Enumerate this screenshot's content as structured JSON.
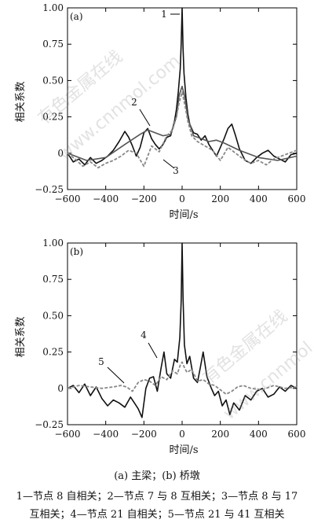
{
  "chart_data": [
    {
      "type": "line",
      "panel_label": "(a)",
      "xlabel": "时间/s",
      "ylabel": "相关系数",
      "xlim": [
        -600,
        600
      ],
      "ylim": [
        -0.25,
        1.0
      ],
      "xticks": [
        "−600",
        "−400",
        "−200",
        "0",
        "200",
        "400",
        "600"
      ],
      "yticks": [
        "−0.25",
        "0",
        "0.25",
        "0.50",
        "0.75",
        "1.00"
      ],
      "series": [
        {
          "name": "1",
          "style": "solid",
          "color": "#111111",
          "x": [
            -600,
            -570,
            -540,
            -510,
            -480,
            -450,
            -420,
            -390,
            -360,
            -330,
            -300,
            -280,
            -260,
            -240,
            -220,
            -200,
            -180,
            -160,
            -140,
            -120,
            -100,
            -80,
            -60,
            -40,
            -30,
            -20,
            -10,
            -5,
            0,
            5,
            10,
            20,
            30,
            40,
            60,
            80,
            100,
            120,
            140,
            160,
            180,
            200,
            220,
            240,
            260,
            280,
            300,
            330,
            360,
            390,
            420,
            450,
            480,
            510,
            540,
            570,
            600
          ],
          "y": [
            0.0,
            -0.06,
            -0.04,
            -0.08,
            -0.03,
            -0.07,
            -0.05,
            -0.02,
            0.02,
            0.08,
            0.15,
            0.11,
            0.05,
            -0.02,
            0.04,
            0.14,
            0.17,
            0.1,
            0.06,
            0.03,
            0.06,
            0.11,
            0.12,
            0.22,
            0.3,
            0.42,
            0.58,
            0.75,
            1.0,
            0.72,
            0.55,
            0.38,
            0.27,
            0.2,
            0.14,
            0.13,
            0.09,
            0.12,
            0.06,
            0.02,
            -0.02,
            0.04,
            0.1,
            0.17,
            0.2,
            0.12,
            0.03,
            -0.05,
            -0.07,
            -0.03,
            0.0,
            0.02,
            -0.02,
            -0.04,
            -0.06,
            -0.01,
            0.0
          ]
        },
        {
          "name": "2",
          "style": "solid",
          "color": "#555555",
          "x": [
            -600,
            -500,
            -400,
            -300,
            -220,
            -180,
            -140,
            -100,
            -60,
            -30,
            -15,
            0,
            15,
            30,
            60,
            100,
            140,
            180,
            220,
            300,
            400,
            500,
            600
          ],
          "y": [
            0.0,
            -0.05,
            -0.03,
            0.06,
            0.13,
            0.16,
            0.14,
            0.12,
            0.13,
            0.25,
            0.4,
            0.46,
            0.38,
            0.24,
            0.12,
            0.1,
            0.08,
            0.09,
            0.07,
            0.02,
            -0.03,
            -0.05,
            -0.02
          ]
        },
        {
          "name": "3",
          "style": "dashed",
          "color": "#888888",
          "x": [
            -600,
            -560,
            -520,
            -480,
            -440,
            -400,
            -360,
            -320,
            -280,
            -240,
            -200,
            -160,
            -120,
            -80,
            -50,
            -30,
            -15,
            0,
            15,
            30,
            50,
            80,
            120,
            160,
            200,
            240,
            280,
            320,
            360,
            400,
            440,
            480,
            520,
            560,
            600
          ],
          "y": [
            0.0,
            -0.04,
            -0.09,
            -0.06,
            -0.1,
            -0.07,
            -0.05,
            -0.02,
            0.02,
            0.0,
            -0.09,
            0.05,
            0.01,
            0.12,
            0.16,
            0.25,
            0.35,
            0.42,
            0.33,
            0.22,
            0.12,
            0.08,
            0.05,
            0.02,
            -0.05,
            0.04,
            0.0,
            -0.04,
            -0.07,
            -0.05,
            -0.08,
            -0.04,
            -0.02,
            0.0,
            0.02
          ]
        }
      ],
      "annotations": [
        "1",
        "2",
        "3"
      ]
    },
    {
      "type": "line",
      "panel_label": "(b)",
      "xlabel": "时间/s",
      "ylabel": "相关系数",
      "xlim": [
        -600,
        600
      ],
      "ylim": [
        -0.25,
        1.0
      ],
      "xticks": [
        "−600",
        "−400",
        "−200",
        "0",
        "200",
        "400",
        "600"
      ],
      "yticks": [
        "−0.25",
        "0",
        "0.25",
        "0.50",
        "0.75",
        "1.00"
      ],
      "series": [
        {
          "name": "4",
          "style": "solid",
          "color": "#111111",
          "x": [
            -600,
            -570,
            -540,
            -510,
            -480,
            -450,
            -420,
            -390,
            -360,
            -330,
            -300,
            -270,
            -250,
            -230,
            -210,
            -190,
            -170,
            -150,
            -130,
            -110,
            -95,
            -80,
            -60,
            -40,
            -25,
            -12,
            -5,
            0,
            5,
            12,
            25,
            40,
            60,
            80,
            95,
            110,
            130,
            150,
            170,
            190,
            210,
            230,
            250,
            270,
            300,
            330,
            360,
            390,
            420,
            450,
            480,
            510,
            540,
            570,
            600
          ],
          "y": [
            0.0,
            0.02,
            -0.03,
            0.03,
            -0.05,
            0.01,
            -0.07,
            -0.12,
            -0.08,
            -0.1,
            -0.13,
            -0.06,
            -0.1,
            -0.14,
            -0.2,
            0.0,
            0.07,
            0.08,
            -0.02,
            0.14,
            0.25,
            0.1,
            0.07,
            0.2,
            0.18,
            0.35,
            0.6,
            1.0,
            0.62,
            0.3,
            0.17,
            0.22,
            0.07,
            0.04,
            0.14,
            0.25,
            0.08,
            0.01,
            -0.05,
            -0.02,
            -0.12,
            -0.08,
            -0.18,
            -0.1,
            -0.15,
            -0.05,
            -0.08,
            -0.02,
            0.0,
            -0.06,
            -0.04,
            0.01,
            -0.02,
            0.02,
            0.0
          ]
        },
        {
          "name": "5",
          "style": "dashed",
          "color": "#888888",
          "x": [
            -600,
            -540,
            -480,
            -420,
            -360,
            -320,
            -290,
            -260,
            -230,
            -200,
            -170,
            -140,
            -110,
            -80,
            -50,
            -25,
            -10,
            0,
            10,
            25,
            50,
            80,
            110,
            140,
            170,
            200,
            230,
            260,
            290,
            320,
            360,
            420,
            480,
            540,
            600
          ],
          "y": [
            0.0,
            0.02,
            0.01,
            0.0,
            0.01,
            0.02,
            0.01,
            -0.02,
            0.04,
            0.06,
            0.05,
            0.02,
            0.08,
            0.06,
            0.12,
            0.1,
            0.16,
            0.18,
            0.15,
            0.11,
            0.13,
            0.05,
            0.06,
            0.03,
            0.02,
            -0.01,
            -0.04,
            -0.02,
            0.01,
            0.02,
            0.0,
            -0.01,
            0.02,
            0.0,
            0.01
          ]
        }
      ],
      "annotations": [
        "4",
        "5"
      ]
    }
  ],
  "caption": {
    "main": "(a) 主梁；(b) 桥墩",
    "legend_line1": "1—节点 8 自相关；2—节点 7 与 8 互相关；3—节点 8 与 17",
    "legend_line2": "互相关；4—节点 21 自相关；5—节点 21 与 41 互相关"
  },
  "watermark": {
    "line1": "有色金属在线",
    "line2": "www.cnnmol.com"
  }
}
